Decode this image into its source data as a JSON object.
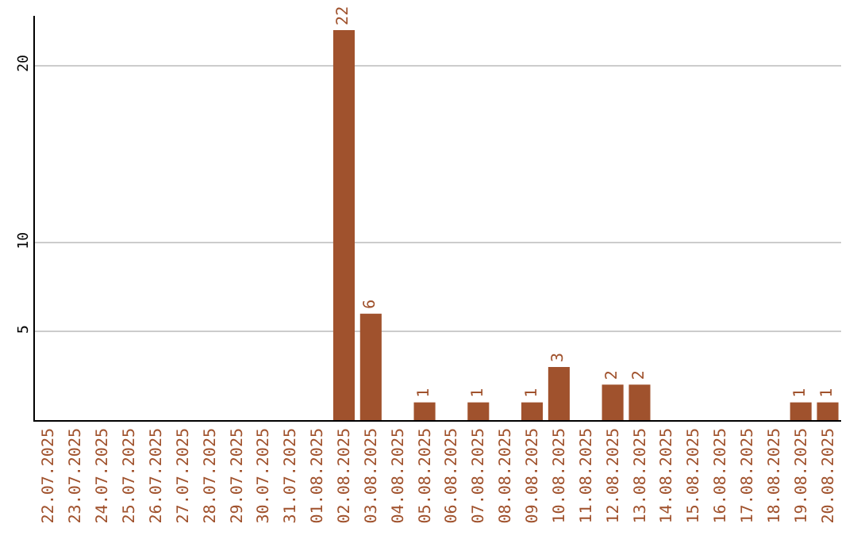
{
  "chart_data": {
    "type": "bar",
    "categories": [
      "22.07.2025",
      "23.07.2025",
      "24.07.2025",
      "25.07.2025",
      "26.07.2025",
      "27.07.2025",
      "28.07.2025",
      "29.07.2025",
      "30.07.2025",
      "31.07.2025",
      "01.08.2025",
      "02.08.2025",
      "03.08.2025",
      "04.08.2025",
      "05.08.2025",
      "06.08.2025",
      "07.08.2025",
      "08.08.2025",
      "09.08.2025",
      "10.08.2025",
      "11.08.2025",
      "12.08.2025",
      "13.08.2025",
      "14.08.2025",
      "15.08.2025",
      "16.08.2025",
      "17.08.2025",
      "18.08.2025",
      "19.08.2025",
      "20.08.2025"
    ],
    "values": [
      0,
      0,
      0,
      0,
      0,
      0,
      0,
      0,
      0,
      0,
      0,
      22,
      6,
      0,
      1,
      0,
      1,
      0,
      1,
      3,
      0,
      2,
      2,
      0,
      0,
      0,
      0,
      0,
      1,
      1
    ],
    "value_labels": [
      null,
      null,
      null,
      null,
      null,
      null,
      null,
      null,
      null,
      null,
      null,
      "22",
      "6",
      null,
      "1",
      null,
      "1",
      null,
      "1",
      "3",
      null,
      "2",
      "2",
      null,
      null,
      null,
      null,
      null,
      "1",
      "1"
    ],
    "color": "#a0522d",
    "ylim": [
      0,
      22.8
    ],
    "yticks": [
      5,
      10,
      20
    ],
    "grid": "y"
  }
}
